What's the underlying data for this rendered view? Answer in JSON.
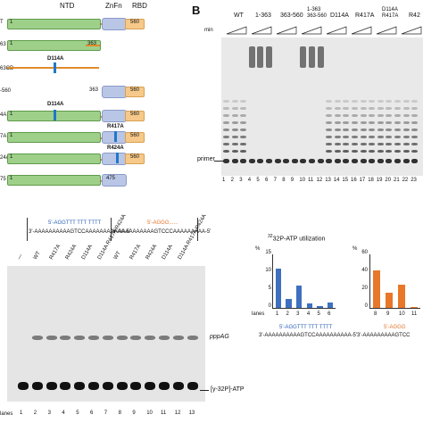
{
  "panelA": {
    "labels": {
      "ntd": "NTD",
      "znfn": "ZnFn",
      "rbd": "RBD"
    },
    "constructs": [
      {
        "row": "T",
        "start": "1",
        "end": "560",
        "mut": ""
      },
      {
        "row": "63",
        "start": "1",
        "end": "363",
        "mut": ""
      },
      {
        "row": "63CD",
        "start": "",
        "end": "",
        "mut": "D114A"
      },
      {
        "row": "-560",
        "start": "363",
        "end": "560",
        "mut": ""
      },
      {
        "row": "4A",
        "start": "1",
        "end": "560",
        "mut": "D114A"
      },
      {
        "row": "7A",
        "start": "1",
        "end": "560",
        "mut": "R417A"
      },
      {
        "row": "24A",
        "start": "1",
        "end": "560",
        "mut": "R424A"
      },
      {
        "row": "75",
        "start": "1",
        "end": "475",
        "mut": ""
      }
    ]
  },
  "panelB": {
    "letter": "B",
    "header": [
      "WT",
      "1-363",
      "363-560",
      "1-363\n363-560",
      "D114A",
      "R417A",
      "D114A\nR417A",
      "R42"
    ],
    "min": "min",
    "primer": "primer",
    "lanes": [
      "1",
      "2",
      "3",
      "4",
      "5",
      "6",
      "7",
      "8",
      "9",
      "10",
      "11",
      "12",
      "13",
      "14",
      "15",
      "16",
      "17",
      "18",
      "19",
      "20",
      "21",
      "22",
      "23"
    ]
  },
  "panelC": {
    "template_blue": "5'-AGGTTT TTT TTTT",
    "template_orange": "5'-AGGG......",
    "strand_blue": "3'-AAAAAAAAAAGTCCAAAAAAAAAAA-5'",
    "strand_orange": "3'-AAAAAAAAAAGTCCCAAAAAAAAA-5'",
    "lane_labels": [
      "—",
      "WT",
      "R417A",
      "R424A",
      "D114A",
      "D114A R417A R424A",
      "WT",
      "R417A",
      "R424A",
      "D114A",
      "D114A R417A R424A"
    ],
    "ppp_label": "pppAG",
    "atp_label": "[γ-32P]-ATP",
    "lanes_prefix": "lanes",
    "lanes": [
      "1",
      "2",
      "3",
      "4",
      "5",
      "6",
      "7",
      "8",
      "9",
      "10",
      "11",
      "12",
      "13"
    ]
  },
  "chart_data": [
    {
      "type": "bar",
      "title": "32P-ATP utilization",
      "ylabel": "%",
      "ylim": [
        0,
        15
      ],
      "yticks": [
        "0",
        "5",
        "10",
        "15"
      ],
      "lanes_label": "lanes",
      "categories": [
        "1",
        "2",
        "3",
        "4",
        "5",
        "6"
      ],
      "values": [
        11.0,
        2.5,
        6.3,
        1.2,
        0.4,
        1.4
      ],
      "color": "#3f70c0",
      "template": "5'-AGGTTT TTT TTTT",
      "strand": "3'-AAAAAAAAAAGTCCAAAAAAAAAA-5'"
    },
    {
      "type": "bar",
      "title": "",
      "ylabel": "%",
      "ylim": [
        0,
        60
      ],
      "yticks": [
        "0",
        "20",
        "40",
        "60"
      ],
      "lanes_label": "",
      "categories": [
        "8",
        "9",
        "10",
        "11"
      ],
      "values": [
        42,
        17,
        26,
        1.0
      ],
      "color": "#e8772a",
      "template": "5'-AGGG",
      "strand": "3'-AAAAAAAAAGTCC"
    }
  ]
}
